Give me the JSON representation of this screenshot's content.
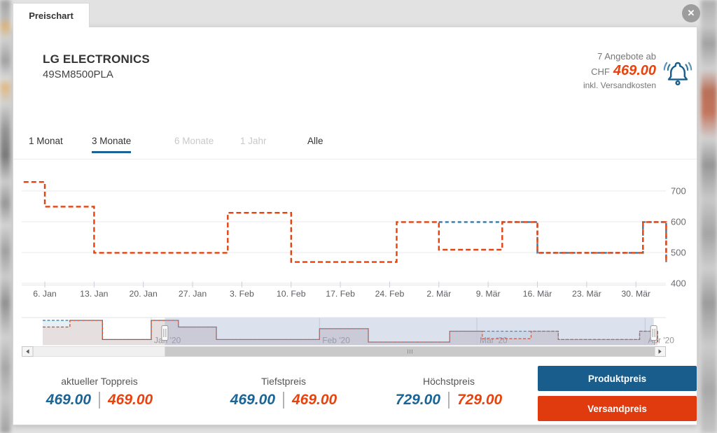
{
  "window": {
    "tab_label": "Preischart",
    "close_glyph": "✕"
  },
  "product": {
    "brand": "LG ELECTRONICS",
    "model": "49SM8500PLA"
  },
  "offer": {
    "count_text": "7 Angebote ab",
    "currency": "CHF",
    "price": "469.00",
    "note": "inkl. Versandkosten"
  },
  "period_tabs": [
    {
      "label": "1 Monat",
      "state": "normal"
    },
    {
      "label": "3 Monate",
      "state": "active"
    },
    {
      "label": "6 Monate",
      "state": "disabled"
    },
    {
      "label": "1 Jahr",
      "state": "disabled"
    },
    {
      "label": "Alle",
      "state": "normal"
    }
  ],
  "stats": [
    {
      "label": "aktueller Toppreis",
      "product_price": "469.00",
      "shipping_price": "469.00"
    },
    {
      "label": "Tiefstpreis",
      "product_price": "469.00",
      "shipping_price": "469.00"
    },
    {
      "label": "Höchstpreis",
      "product_price": "729.00",
      "shipping_price": "729.00"
    }
  ],
  "legend_buttons": [
    {
      "label": "Produktpreis",
      "color": "#195d8c"
    },
    {
      "label": "Versandpreis",
      "color": "#df3b0e"
    }
  ],
  "colors": {
    "product_line": "#3579a8",
    "shipping_line": "#e5420e",
    "price_blue": "#1a6496",
    "price_red": "#e8430f",
    "grid": "#eaeaef",
    "axis_text": "#5d5d63",
    "y_axis_text": "#6b6b70",
    "nav_month_text": "#97979c",
    "selection_overlay": "rgba(148,163,203,0.33)"
  },
  "chart_data": {
    "type": "line",
    "title": "Preischart LG ELECTRONICS 49SM8500PLA",
    "note": "dashed step lines, prices in CHF; day index 1 = 1. Jan 2020, negative = Dez 2019",
    "ylim": [
      400,
      773
    ],
    "y_ticks": [
      400,
      500,
      600,
      700
    ],
    "x_ticks": [
      {
        "day": 6,
        "label": "6. Jan"
      },
      {
        "day": 13,
        "label": "13. Jan"
      },
      {
        "day": 20,
        "label": "20. Jan"
      },
      {
        "day": 27,
        "label": "27. Jan"
      },
      {
        "day": 34,
        "label": "3. Feb"
      },
      {
        "day": 41,
        "label": "10. Feb"
      },
      {
        "day": 48,
        "label": "17. Feb"
      },
      {
        "day": 55,
        "label": "24. Feb"
      },
      {
        "day": 62,
        "label": "2. Mär"
      },
      {
        "day": 69,
        "label": "9. Mär"
      },
      {
        "day": 76,
        "label": "16. Mär"
      },
      {
        "day": 83,
        "label": "23. Mär"
      },
      {
        "day": 90,
        "label": "30. Mär"
      }
    ],
    "series": [
      {
        "name": "Produktpreis",
        "color": "#3579a8",
        "points": [
          [
            62,
            599
          ],
          [
            76,
            499
          ],
          [
            91,
            599
          ],
          [
            94.3,
            469
          ]
        ]
      },
      {
        "name": "Versandpreis",
        "color": "#e5420e",
        "points": [
          [
            3,
            729
          ],
          [
            6,
            649
          ],
          [
            13,
            499
          ],
          [
            32,
            629
          ],
          [
            41,
            469
          ],
          [
            56,
            599
          ],
          [
            62,
            509
          ],
          [
            71,
            599
          ],
          [
            76,
            499
          ],
          [
            91,
            599
          ],
          [
            94.3,
            469
          ]
        ]
      }
    ],
    "navigator": {
      "product_points": [
        [
          -19,
          729
        ],
        [
          -14,
          729
        ],
        [
          -8,
          499
        ],
        [
          1,
          729
        ],
        [
          6,
          649
        ],
        [
          13,
          499
        ],
        [
          32,
          629
        ],
        [
          41,
          469
        ],
        [
          56,
          599
        ],
        [
          76,
          499
        ],
        [
          91,
          599
        ],
        [
          94.3,
          469
        ]
      ],
      "shipping_points": [
        [
          -19,
          649
        ],
        [
          -14,
          729
        ],
        [
          -8,
          499
        ],
        [
          1,
          729
        ],
        [
          6,
          649
        ],
        [
          13,
          499
        ],
        [
          32,
          629
        ],
        [
          41,
          469
        ],
        [
          56,
          599
        ],
        [
          62,
          509
        ],
        [
          71,
          599
        ],
        [
          76,
          499
        ],
        [
          91,
          599
        ],
        [
          94.3,
          469
        ]
      ],
      "months": [
        {
          "day": 1,
          "label": "Jan '20"
        },
        {
          "day": 32,
          "label": "Feb '20"
        },
        {
          "day": 61,
          "label": "Mär '20"
        },
        {
          "day": 92,
          "label": "Apr '20"
        }
      ],
      "selection_days": [
        3.5,
        93.6
      ]
    }
  }
}
